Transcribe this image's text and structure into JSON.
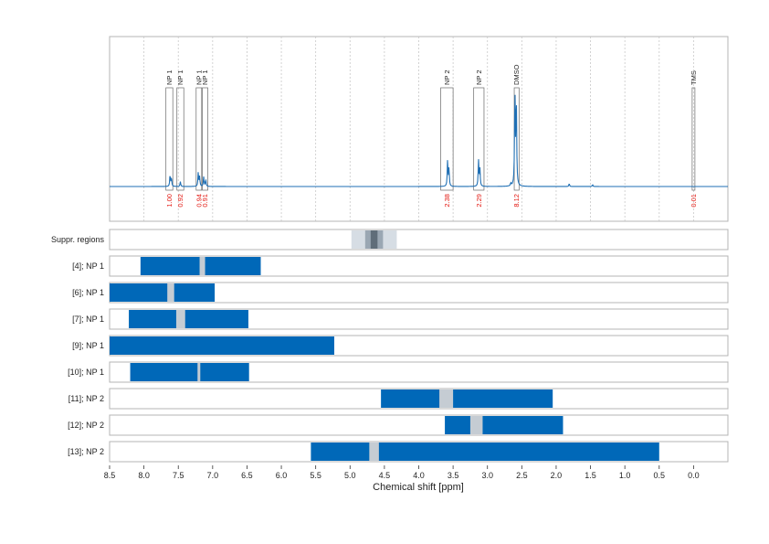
{
  "chart_data": {
    "type": "line",
    "xlabel": "Chemical shift [ppm]",
    "xlim": [
      8.5,
      -0.5
    ],
    "x_ticks": [
      "8.5",
      "8.0",
      "7.5",
      "7.0",
      "6.5",
      "6.0",
      "5.5",
      "5.0",
      "4.5",
      "4.0",
      "3.5",
      "3.0",
      "2.5",
      "2.0",
      "1.5",
      "1.0",
      "0.5",
      "0.0"
    ],
    "spectrum": {
      "color": "#1f6fb4",
      "peaks": [
        {
          "ppm": 7.62,
          "height": 0.12
        },
        {
          "ppm": 7.6,
          "height": 0.09
        },
        {
          "ppm": 7.47,
          "height": 0.05
        },
        {
          "ppm": 7.21,
          "height": 0.14
        },
        {
          "ppm": 7.19,
          "height": 0.1
        },
        {
          "ppm": 7.13,
          "height": 0.1
        },
        {
          "ppm": 7.1,
          "height": 0.07
        },
        {
          "ppm": 3.58,
          "height": 0.27
        },
        {
          "ppm": 3.56,
          "height": 0.18
        },
        {
          "ppm": 3.13,
          "height": 0.27
        },
        {
          "ppm": 3.11,
          "height": 0.18
        },
        {
          "ppm": 2.66,
          "height": 0.03
        },
        {
          "ppm": 2.6,
          "height": 1.0
        },
        {
          "ppm": 2.58,
          "height": 0.9
        },
        {
          "ppm": 1.81,
          "height": 0.03
        },
        {
          "ppm": 1.47,
          "height": 0.02
        }
      ]
    },
    "peak_boxes": [
      {
        "label": "NP 1",
        "from": 7.68,
        "to": 7.58,
        "integral": "1.00"
      },
      {
        "label": "NP 1",
        "from": 7.52,
        "to": 7.42,
        "integral": "0.92"
      },
      {
        "label": "NP 1",
        "from": 7.24,
        "to": 7.16,
        "integral": "0.94"
      },
      {
        "label": "NP 1",
        "from": 7.15,
        "to": 7.07,
        "integral": "0.91"
      },
      {
        "label": "NP 2",
        "from": 3.68,
        "to": 3.5,
        "integral": "2.38"
      },
      {
        "label": "NP 2",
        "from": 3.2,
        "to": 3.05,
        "integral": "2.29"
      },
      {
        "label": "DMSO",
        "from": 2.61,
        "to": 2.54,
        "integral": "8.12"
      },
      {
        "label": "TMS",
        "from": 0.02,
        "to": -0.02,
        "integral": "0.01"
      }
    ],
    "suppression": {
      "label": "Suppr. regions",
      "outer": [
        4.98,
        4.32
      ],
      "mid": [
        4.78,
        4.52
      ],
      "inner": [
        4.7,
        4.6
      ]
    },
    "rows": [
      {
        "label": "[4]; NP 1",
        "range": [
          8.05,
          6.3
        ],
        "gap": [
          7.19,
          7.11
        ]
      },
      {
        "label": "[6]; NP 1",
        "range": [
          8.5,
          6.97
        ],
        "gap": [
          7.66,
          7.56
        ]
      },
      {
        "label": "[7]; NP 1",
        "range": [
          8.22,
          6.48
        ],
        "gap": [
          7.53,
          7.4
        ]
      },
      {
        "label": "[9]; NP 1",
        "range": [
          8.5,
          5.23
        ],
        "gap": null
      },
      {
        "label": "[10]; NP 1",
        "range": [
          8.2,
          6.47
        ],
        "gap": [
          7.22,
          7.18
        ]
      },
      {
        "label": "[11]; NP 2",
        "range": [
          4.55,
          2.05
        ],
        "gap": [
          3.7,
          3.5
        ]
      },
      {
        "label": "[12]; NP 2",
        "range": [
          3.62,
          1.9
        ],
        "gap": [
          3.25,
          3.07
        ]
      },
      {
        "label": "[13]; NP 2",
        "range": [
          5.57,
          0.5
        ],
        "gap": [
          4.72,
          4.58
        ]
      }
    ],
    "colors": {
      "bar": "#0068b8",
      "gap": "#c5ccd3",
      "supp_outer": "#d6dde4",
      "supp_mid": "#9aa7b3",
      "supp_inner": "#5f6d79",
      "integral": "#e3160f",
      "panel_border": "#b4b4b4",
      "grid": "#c8c8c8"
    }
  }
}
